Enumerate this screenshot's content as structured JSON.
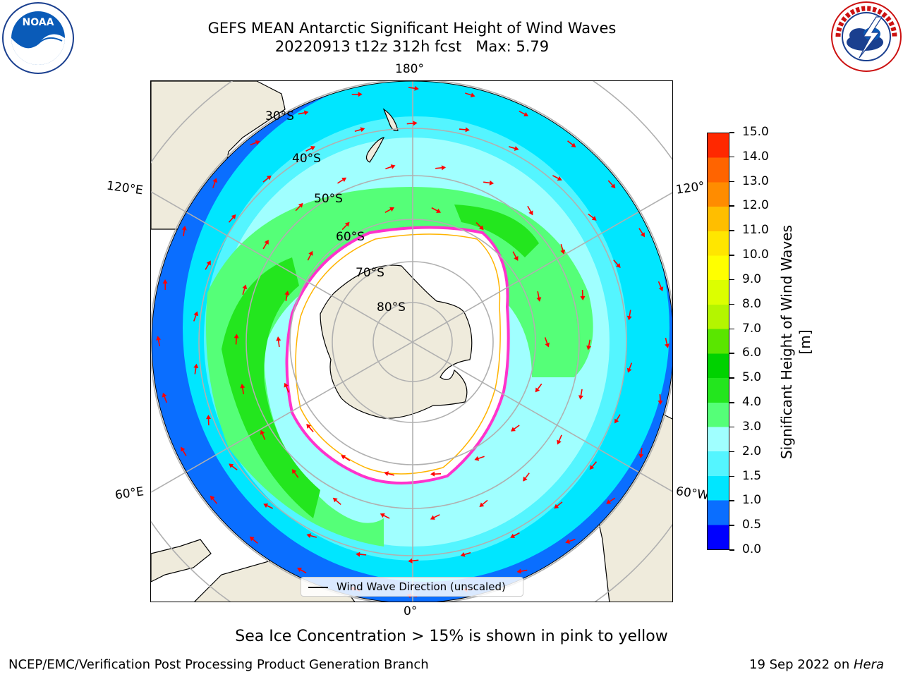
{
  "title": {
    "line1": "GEFS MEAN Antarctic Significant Height of Wind Waves",
    "line2": "20220913 t12z 312h fcst   Max: 5.79"
  },
  "logos": {
    "left": "noaa-logo",
    "right": "national-weather-service-logo"
  },
  "map": {
    "projection": "south-polar-stereographic",
    "lat_labels": [
      "30°S",
      "40°S",
      "50°S",
      "60°S",
      "70°S",
      "80°S"
    ],
    "lon_labels": {
      "top": "180°",
      "bottom": "0°",
      "upper_left": "120°E",
      "upper_right": "120°",
      "lower_left": "60°E",
      "lower_right": "60°W"
    },
    "colors": {
      "land": "#efebdc",
      "ice_free": "#ffffff",
      "grid": "#b0b0b0",
      "arrows": "#ff0000",
      "sea_ice_edge": "#ff33cc"
    }
  },
  "legend": {
    "label": "Wind Wave Direction (unscaled)"
  },
  "colorbar": {
    "label": "Significant Height of Wind Waves [m]",
    "ticks": [
      "0.0",
      "0.5",
      "1.0",
      "1.5",
      "2.0",
      "3.0",
      "4.0",
      "5.0",
      "6.0",
      "7.0",
      "8.0",
      "9.0",
      "10.0",
      "11.0",
      "12.0",
      "13.0",
      "14.0",
      "15.0"
    ],
    "colors": [
      "#0000ff",
      "#0a6eff",
      "#00e6ff",
      "#54f5ff",
      "#a0ffff",
      "#55ff78",
      "#23e61e",
      "#00d200",
      "#5ae600",
      "#b4f500",
      "#dcff00",
      "#ffff00",
      "#ffe600",
      "#ffbe00",
      "#ff8c00",
      "#ff6400",
      "#ff2800"
    ]
  },
  "subtitle": "Sea Ice Concentration > 15% is shown in pink to yellow",
  "footer": {
    "left": "NCEP/EMC/Verification Post Processing Product Generation Branch",
    "right_date": "19 Sep 2022 on ",
    "right_host": "Hera"
  }
}
